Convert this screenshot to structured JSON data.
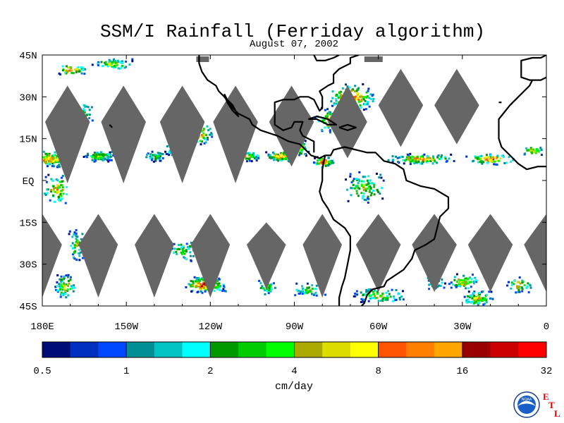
{
  "title": "SSM/I Rainfall (Ferriday algorithm)",
  "date": "August 07, 2002",
  "map": {
    "lat_labels": [
      "45N",
      "30N",
      "15N",
      "EQ",
      "15S",
      "30S",
      "45S"
    ],
    "lon_labels": [
      "180E",
      "150W",
      "120W",
      "90W",
      "60W",
      "30W",
      "0"
    ]
  },
  "colorbar": {
    "colors": [
      "#000d78",
      "#0030c0",
      "#0048ff",
      "#008f94",
      "#00c4c4",
      "#00ffff",
      "#009900",
      "#00cc00",
      "#00ff00",
      "#aaaa00",
      "#dddd00",
      "#ffff00",
      "#ff5500",
      "#ff7f00",
      "#ffa500",
      "#990000",
      "#cc0000",
      "#ff0000"
    ],
    "tick_labels": [
      "0.5",
      "1",
      "2",
      "4",
      "8",
      "16",
      "32"
    ],
    "unit": "cm/day"
  },
  "logo": {
    "name": "noaa-logo",
    "text": "NOAA"
  },
  "lab_mark": [
    "E",
    "T",
    "L"
  ]
}
